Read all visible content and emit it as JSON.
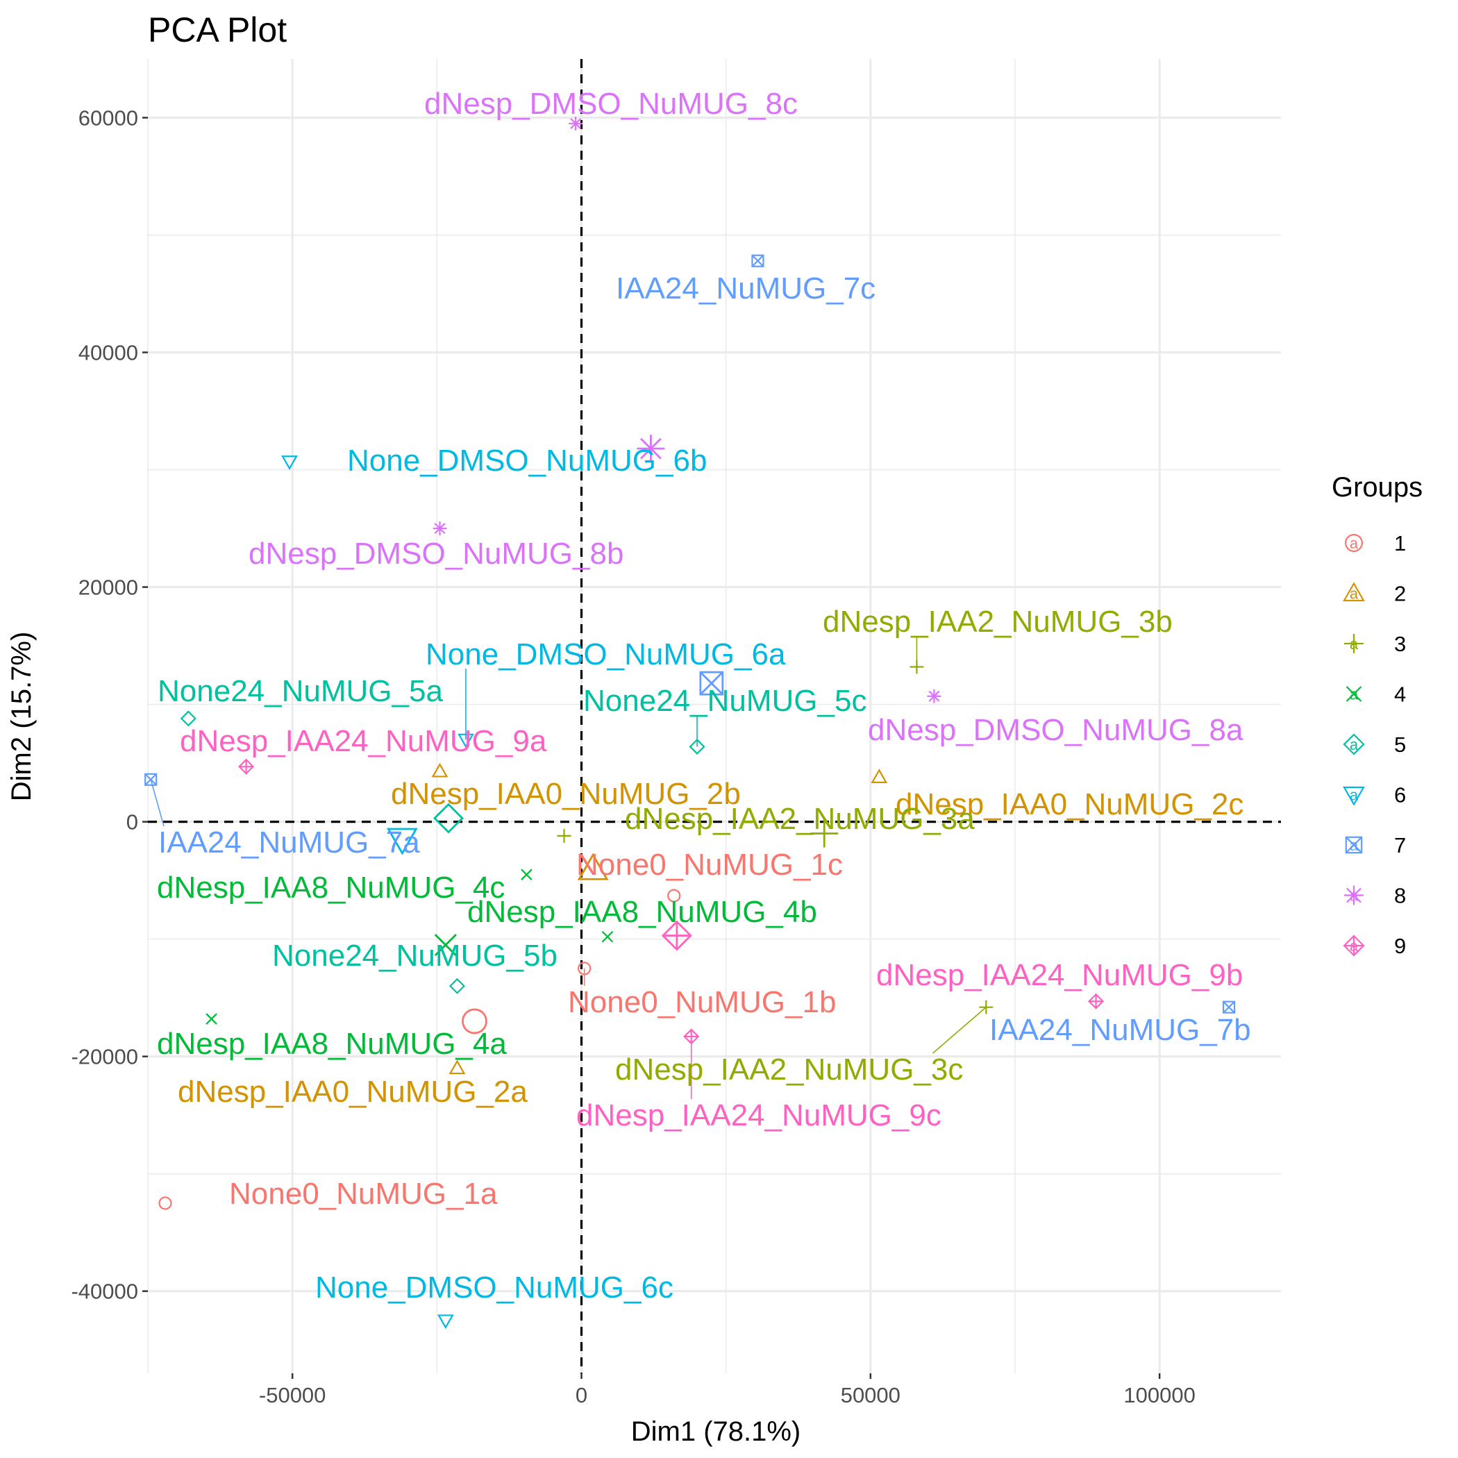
{
  "chart_data": {
    "type": "scatter",
    "title": "PCA Plot",
    "xlabel": "Dim1 (78.1%)",
    "ylabel": "Dim2 (15.7%)",
    "xlim": [
      -75000,
      121000
    ],
    "ylim": [
      -47000,
      65000
    ],
    "x_ticks": [
      -50000,
      0,
      50000,
      100000
    ],
    "x_tick_labels": [
      "-50000",
      "0",
      "50000",
      "100000"
    ],
    "y_ticks": [
      -40000,
      -20000,
      0,
      20000,
      40000,
      60000
    ],
    "y_tick_labels": [
      "-40000",
      "-20000",
      "0",
      "20000",
      "40000",
      "60000"
    ],
    "grid": true,
    "reference_lines": {
      "x": 0,
      "y": 0,
      "style": "dashed"
    },
    "legend": {
      "title": "Groups",
      "placement": "right",
      "entries": [
        {
          "label": "1",
          "color": "#F8766D",
          "shape": "circle"
        },
        {
          "label": "2",
          "color": "#D39200",
          "shape": "triangle"
        },
        {
          "label": "3",
          "color": "#93AA00",
          "shape": "plus"
        },
        {
          "label": "4",
          "color": "#00BA38",
          "shape": "cross"
        },
        {
          "label": "5",
          "color": "#00C19F",
          "shape": "diamond"
        },
        {
          "label": "6",
          "color": "#00B9E3",
          "shape": "triangle-down"
        },
        {
          "label": "7",
          "color": "#619CFF",
          "shape": "square-cross"
        },
        {
          "label": "8",
          "color": "#DB72FB",
          "shape": "star"
        },
        {
          "label": "9",
          "color": "#FF61C3",
          "shape": "diamond-plus"
        }
      ]
    },
    "points": [
      {
        "label": "None0_NuMUG_1a",
        "group": 1,
        "x": -72000,
        "y": -32500
      },
      {
        "label": "None0_NuMUG_1b",
        "group": 1,
        "x": 500,
        "y": -12500
      },
      {
        "label": "None0_NuMUG_1c",
        "group": 1,
        "x": 16000,
        "y": -6300
      },
      {
        "label": "dNesp_IAA0_NuMUG_2a",
        "group": 2,
        "x": -21500,
        "y": -21000
      },
      {
        "label": "dNesp_IAA0_NuMUG_2b",
        "group": 2,
        "x": -24500,
        "y": 4300
      },
      {
        "label": "dNesp_IAA0_NuMUG_2c",
        "group": 2,
        "x": 51500,
        "y": 3800
      },
      {
        "label": "dNesp_IAA2_NuMUG_3a",
        "group": 3,
        "x": -3000,
        "y": -1200
      },
      {
        "label": "dNesp_IAA2_NuMUG_3b",
        "group": 3,
        "x": 58000,
        "y": 13200
      },
      {
        "label": "dNesp_IAA2_NuMUG_3c",
        "group": 3,
        "x": 70000,
        "y": -15800
      },
      {
        "label": "dNesp_IAA8_NuMUG_4a",
        "group": 4,
        "x": -64000,
        "y": -16800
      },
      {
        "label": "dNesp_IAA8_NuMUG_4b",
        "group": 4,
        "x": 4500,
        "y": -9800
      },
      {
        "label": "dNesp_IAA8_NuMUG_4c",
        "group": 4,
        "x": -9500,
        "y": -4500
      },
      {
        "label": "None24_NuMUG_5a",
        "group": 5,
        "x": -68000,
        "y": 8800
      },
      {
        "label": "None24_NuMUG_5b",
        "group": 5,
        "x": -21500,
        "y": -14000
      },
      {
        "label": "None24_NuMUG_5c",
        "group": 5,
        "x": 20000,
        "y": 6400
      },
      {
        "label": "None_DMSO_NuMUG_6a",
        "group": 6,
        "x": -20000,
        "y": 7000
      },
      {
        "label": "None_DMSO_NuMUG_6b",
        "group": 6,
        "x": -50500,
        "y": 30700
      },
      {
        "label": "None_DMSO_NuMUG_6c",
        "group": 6,
        "x": -23500,
        "y": -42500
      },
      {
        "label": "IAA24_NuMUG_7a",
        "group": 7,
        "x": -74500,
        "y": 3600
      },
      {
        "label": "IAA24_NuMUG_7b",
        "group": 7,
        "x": 112000,
        "y": -15800
      },
      {
        "label": "IAA24_NuMUG_7c",
        "group": 7,
        "x": 30500,
        "y": 47800
      },
      {
        "label": "dNesp_DMSO_NuMUG_8a",
        "group": 8,
        "x": 61000,
        "y": 10700
      },
      {
        "label": "dNesp_DMSO_NuMUG_8b",
        "group": 8,
        "x": -24500,
        "y": 25000
      },
      {
        "label": "dNesp_DMSO_NuMUG_8c",
        "group": 8,
        "x": -1000,
        "y": 59500
      },
      {
        "label": "dNesp_IAA24_NuMUG_9a",
        "group": 9,
        "x": -58000,
        "y": 4700
      },
      {
        "label": "dNesp_IAA24_NuMUG_9b",
        "group": 9,
        "x": 89000,
        "y": -15300
      },
      {
        "label": "dNesp_IAA24_NuMUG_9c",
        "group": 9,
        "x": 19000,
        "y": -18300
      }
    ],
    "centroids": [
      {
        "group": 1,
        "x": -18500,
        "y": -17000
      },
      {
        "group": 2,
        "x": 2000,
        "y": -4000
      },
      {
        "group": 3,
        "x": 42000,
        "y": -1000
      },
      {
        "group": 4,
        "x": -23500,
        "y": -10500
      },
      {
        "group": 5,
        "x": -23000,
        "y": 300
      },
      {
        "group": 6,
        "x": -31000,
        "y": -1500
      },
      {
        "group": 7,
        "x": 22500,
        "y": 11800
      },
      {
        "group": 8,
        "x": 12000,
        "y": 31800
      },
      {
        "group": 9,
        "x": 16500,
        "y": -9700
      }
    ]
  }
}
